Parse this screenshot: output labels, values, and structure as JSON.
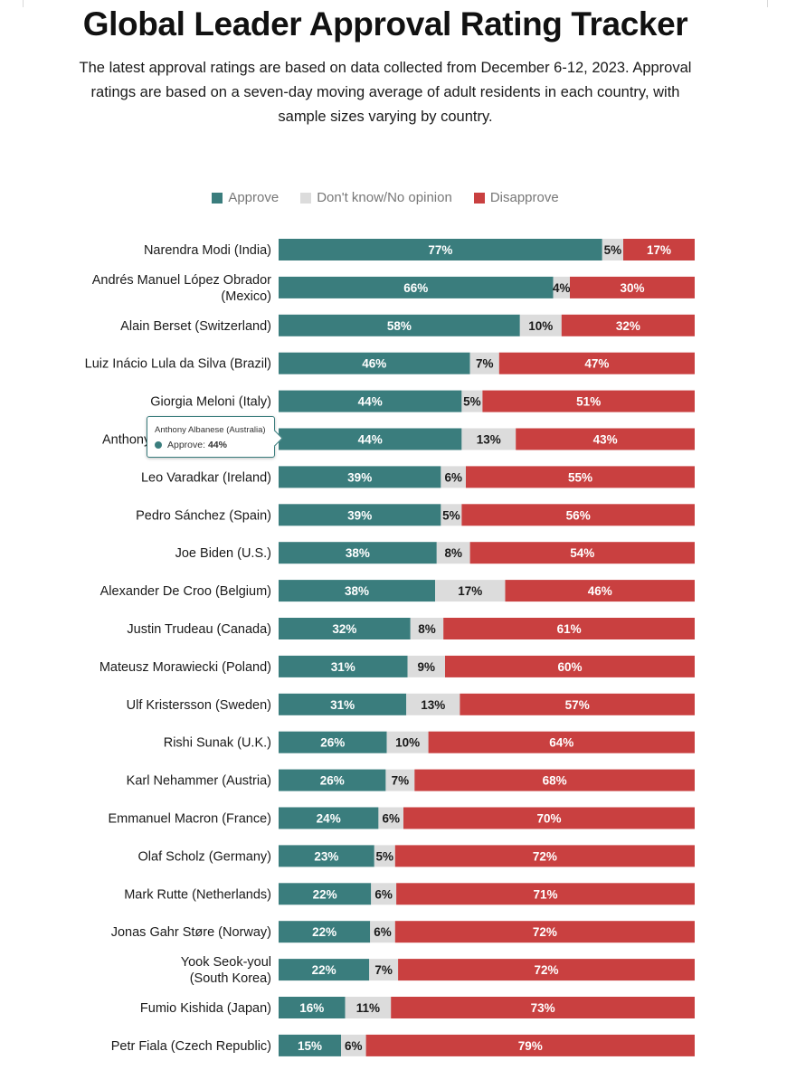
{
  "header": {
    "title": "Global Leader Approval Rating Tracker",
    "subtitle": "The latest approval ratings are based on data collected from December 6-12, 2023. Approval ratings are based on a seven-day moving average of adult residents in each country, with sample sizes varying by country."
  },
  "legend": {
    "approve": "Approve",
    "no_opinion": "Don't know/No opinion",
    "disapprove": "Disapprove"
  },
  "colors": {
    "approve": "#3a7d7d",
    "no_opinion": "#dcdcdc",
    "disapprove": "#c94040"
  },
  "tooltip": {
    "title": "Anthony Albanese (Australia)",
    "series": "Approve:",
    "value": "44%"
  },
  "chart_data": {
    "type": "bar",
    "orientation": "horizontal",
    "stacked": true,
    "categories": [
      "Narendra Modi (India)",
      "Andrés Manuel López Obrador (Mexico)",
      "Alain Berset (Switzerland)",
      "Luiz Inácio Lula da Silva (Brazil)",
      "Giorgia Meloni (Italy)",
      "Anthony Albanese (Australia)",
      "Leo Varadkar (Ireland)",
      "Pedro Sánchez (Spain)",
      "Joe Biden (U.S.)",
      "Alexander De Croo (Belgium)",
      "Justin Trudeau (Canada)",
      "Mateusz Morawiecki (Poland)",
      "Ulf Kristersson (Sweden)",
      "Rishi Sunak (U.K.)",
      "Karl Nehammer (Austria)",
      "Emmanuel Macron (France)",
      "Olaf Scholz (Germany)",
      "Mark Rutte (Netherlands)",
      "Jonas Gahr Støre (Norway)",
      "Yook Seok-youl (South Korea)",
      "Fumio Kishida (Japan)",
      "Petr Fiala (Czech Republic)"
    ],
    "label_lines": [
      [
        "Narendra Modi (India)"
      ],
      [
        "Andrés Manuel López Obrador",
        "(Mexico)"
      ],
      [
        "Alain Berset (Switzerland)"
      ],
      [
        "Luiz Inácio Lula da Silva (Brazil)"
      ],
      [
        "Giorgia Meloni (Italy)"
      ],
      [
        "Anthony Albanese (Australia)"
      ],
      [
        "Leo Varadkar (Ireland)"
      ],
      [
        "Pedro Sánchez (Spain)"
      ],
      [
        "Joe Biden (U.S.)"
      ],
      [
        "Alexander De Croo (Belgium)"
      ],
      [
        "Justin Trudeau (Canada)"
      ],
      [
        "Mateusz Morawiecki (Poland)"
      ],
      [
        "Ulf Kristersson (Sweden)"
      ],
      [
        "Rishi Sunak (U.K.)"
      ],
      [
        "Karl Nehammer (Austria)"
      ],
      [
        "Emmanuel Macron (France)"
      ],
      [
        "Olaf Scholz (Germany)"
      ],
      [
        "Mark Rutte (Netherlands)"
      ],
      [
        "Jonas Gahr Støre (Norway)"
      ],
      [
        "Yook Seok-youl",
        "(South Korea)"
      ],
      [
        "Fumio Kishida (Japan)"
      ],
      [
        "Petr Fiala (Czech Republic)"
      ]
    ],
    "series": [
      {
        "name": "Approve",
        "key": "approve",
        "values": [
          77,
          66,
          58,
          46,
          44,
          44,
          39,
          39,
          38,
          38,
          32,
          31,
          31,
          26,
          26,
          24,
          23,
          22,
          22,
          22,
          16,
          15
        ]
      },
      {
        "name": "Don't know/No opinion",
        "key": "no_opinion",
        "values": [
          5,
          4,
          10,
          7,
          5,
          13,
          6,
          5,
          8,
          17,
          8,
          9,
          13,
          10,
          7,
          6,
          5,
          6,
          6,
          7,
          11,
          6
        ]
      },
      {
        "name": "Disapprove",
        "key": "disapprove",
        "values": [
          17,
          30,
          32,
          47,
          51,
          43,
          55,
          56,
          54,
          46,
          61,
          60,
          57,
          64,
          68,
          70,
          72,
          71,
          72,
          72,
          73,
          79
        ]
      }
    ],
    "xlim": [
      0,
      100
    ],
    "unit": "%"
  }
}
